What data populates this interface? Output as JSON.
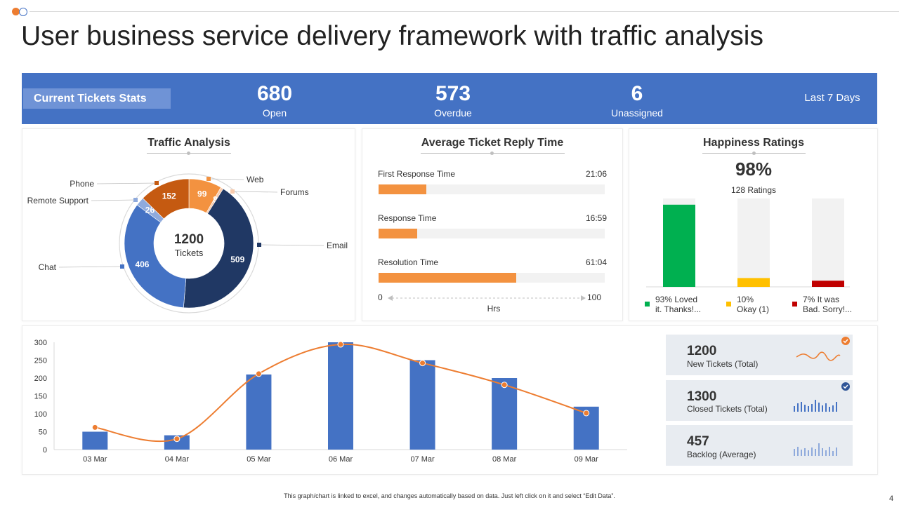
{
  "title": "User business service delivery framework with traffic analysis",
  "stats": {
    "label": "Current Tickets Stats",
    "open": {
      "value": "680",
      "label": "Open"
    },
    "overdue": {
      "value": "573",
      "label": "Overdue"
    },
    "unassigned": {
      "value": "6",
      "label": "Unassigned"
    },
    "period": "Last 7 Days"
  },
  "traffic": {
    "title": "Traffic Analysis",
    "center_value": "1200",
    "center_label": "Tickets",
    "chart_data": {
      "type": "pie",
      "title": "Traffic Analysis",
      "categories": [
        "Web",
        "Forums",
        "Email",
        "Chat",
        "Remote Support",
        "Phone"
      ],
      "values": [
        99,
        8,
        509,
        406,
        26,
        152
      ],
      "colors": [
        "#f39240",
        "#f8cbad",
        "#203864",
        "#4472c4",
        "#8faadc",
        "#c55a11"
      ]
    }
  },
  "reply": {
    "title": "Average Ticket Reply Time",
    "items": [
      {
        "label": "First Response Time",
        "time": "21:06",
        "fill": 0.21
      },
      {
        "label": "Response Time",
        "time": "16:59",
        "fill": 0.17
      },
      {
        "label": "Resolution Time",
        "time": "61:04",
        "fill": 0.61
      }
    ],
    "axis_min": "0",
    "axis_max": "100",
    "axis_unit": "Hrs"
  },
  "happiness": {
    "title": "Happiness Ratings",
    "percent": "98%",
    "ratings": "128 Ratings",
    "chart_data": {
      "type": "bar",
      "categories": [
        "93% Loved it. Thanks!...",
        "10% Okay (1)",
        "7% It was Bad. Sorry!..."
      ],
      "values": [
        93,
        10,
        7
      ],
      "colors": [
        "#00b050",
        "#ffc000",
        "#c00000"
      ],
      "ylim": [
        0,
        100
      ]
    },
    "legend": [
      {
        "line1": "93% Loved",
        "line2": "it. Thanks!...",
        "color": "#00b050"
      },
      {
        "line1": "10%",
        "line2": "Okay (1)",
        "color": "#ffc000"
      },
      {
        "line1": "7% It was",
        "line2": "Bad. Sorry!...",
        "color": "#c00000"
      }
    ]
  },
  "daily": {
    "chart_data": {
      "type": "bar",
      "categories": [
        "03 Mar",
        "04 Mar",
        "05 Mar",
        "06 Mar",
        "07 Mar",
        "08 Mar",
        "09 Mar"
      ],
      "series": [
        {
          "name": "Tickets",
          "type": "bar",
          "values": [
            50,
            40,
            210,
            300,
            250,
            200,
            120
          ],
          "color": "#4472c4"
        },
        {
          "name": "Trend",
          "type": "line",
          "values": [
            62,
            30,
            212,
            294,
            242,
            181,
            102
          ],
          "color": "#ed7d31"
        }
      ],
      "ylim": [
        0,
        300
      ],
      "yticks": [
        0,
        50,
        100,
        150,
        200,
        250,
        300
      ],
      "xlabel": "",
      "ylabel": ""
    }
  },
  "kpis": [
    {
      "value": "1200",
      "label": "New Tickets (Total)"
    },
    {
      "value": "1300",
      "label": "Closed Tickets (Total)"
    },
    {
      "value": "457",
      "label": "Backlog (Average)"
    }
  ],
  "footer": "This graph/chart is linked to excel, and changes automatically based on data. Just left click on it and select “Edit Data”.",
  "page_number": "4"
}
